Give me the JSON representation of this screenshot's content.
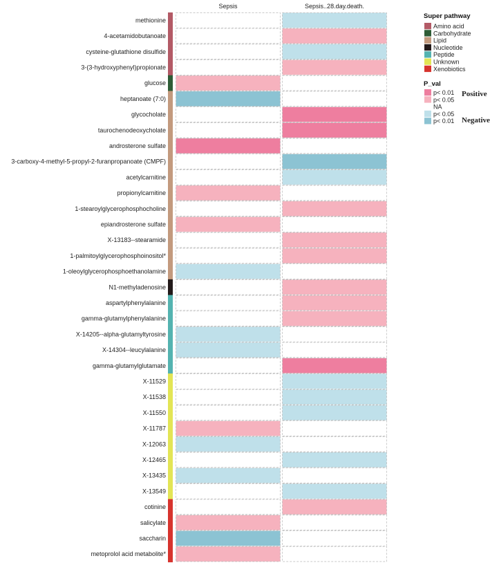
{
  "chart_data": {
    "type": "heatmap",
    "columns": [
      "Sepsis",
      "Sepsis..28.day.death."
    ],
    "rows": [
      {
        "label": "methionine",
        "pathway": "Amino acid",
        "values": [
          "NA",
          "p< 0.05 Negative"
        ]
      },
      {
        "label": "4-acetamidobutanoate",
        "pathway": "Amino acid",
        "values": [
          "NA",
          "p< 0.05 Positive"
        ]
      },
      {
        "label": "cysteine-glutathione disulfide",
        "pathway": "Amino acid",
        "values": [
          "NA",
          "p< 0.05 Negative"
        ]
      },
      {
        "label": "3-(3-hydroxyphenyl)propionate",
        "pathway": "Amino acid",
        "values": [
          "NA",
          "p< 0.05 Positive"
        ]
      },
      {
        "label": "glucose",
        "pathway": "Carbohydrate",
        "values": [
          "p< 0.05 Positive",
          "NA"
        ]
      },
      {
        "label": "heptanoate (7:0)",
        "pathway": "Lipid",
        "values": [
          "p< 0.01 Negative",
          "NA"
        ]
      },
      {
        "label": "glycocholate",
        "pathway": "Lipid",
        "values": [
          "NA",
          "p< 0.01 Positive"
        ]
      },
      {
        "label": "taurochenodeoxycholate",
        "pathway": "Lipid",
        "values": [
          "NA",
          "p< 0.01 Positive"
        ]
      },
      {
        "label": "androsterone sulfate",
        "pathway": "Lipid",
        "values": [
          "p< 0.01 Positive",
          "NA"
        ]
      },
      {
        "label": "3-carboxy-4-methyl-5-propyl-2-furanpropanoate (CMPF)",
        "pathway": "Lipid",
        "values": [
          "NA",
          "p< 0.01 Negative"
        ]
      },
      {
        "label": "acetylcarnitine",
        "pathway": "Lipid",
        "values": [
          "NA",
          "p< 0.05 Negative"
        ]
      },
      {
        "label": "propionylcarnitine",
        "pathway": "Lipid",
        "values": [
          "p< 0.05 Positive",
          "NA"
        ]
      },
      {
        "label": "1-stearoylglycerophosphocholine",
        "pathway": "Lipid",
        "values": [
          "NA",
          "p< 0.05 Positive"
        ]
      },
      {
        "label": "epiandrosterone sulfate",
        "pathway": "Lipid",
        "values": [
          "p< 0.05 Positive",
          "NA"
        ]
      },
      {
        "label": "X-13183--stearamide",
        "pathway": "Lipid",
        "values": [
          "NA",
          "p< 0.05 Positive"
        ]
      },
      {
        "label": "1-palmitoylglycerophosphoinositol*",
        "pathway": "Lipid",
        "values": [
          "NA",
          "p< 0.05 Positive"
        ]
      },
      {
        "label": "1-oleoylglycerophosphoethanolamine",
        "pathway": "Lipid",
        "values": [
          "p< 0.05 Negative",
          "NA"
        ]
      },
      {
        "label": "N1-methyladenosine",
        "pathway": "Nucleotide",
        "values": [
          "NA",
          "p< 0.05 Positive"
        ]
      },
      {
        "label": "aspartylphenylalanine",
        "pathway": "Peptide",
        "values": [
          "NA",
          "p< 0.05 Positive"
        ]
      },
      {
        "label": "gamma-glutamylphenylalanine",
        "pathway": "Peptide",
        "values": [
          "NA",
          "p< 0.05 Positive"
        ]
      },
      {
        "label": "X-14205--alpha-glutamyltyrosine",
        "pathway": "Peptide",
        "values": [
          "p< 0.05 Negative",
          "NA"
        ]
      },
      {
        "label": "X-14304--leucylalanine",
        "pathway": "Peptide",
        "values": [
          "p< 0.05 Negative",
          "NA"
        ]
      },
      {
        "label": "gamma-glutamylglutamate",
        "pathway": "Peptide",
        "values": [
          "NA",
          "p< 0.01 Positive"
        ]
      },
      {
        "label": "X-11529",
        "pathway": "Unknown",
        "values": [
          "NA",
          "p< 0.05 Negative"
        ]
      },
      {
        "label": "X-11538",
        "pathway": "Unknown",
        "values": [
          "NA",
          "p< 0.05 Negative"
        ]
      },
      {
        "label": "X-11550",
        "pathway": "Unknown",
        "values": [
          "NA",
          "p< 0.05 Negative"
        ]
      },
      {
        "label": "X-11787",
        "pathway": "Unknown",
        "values": [
          "p< 0.05 Positive",
          "NA"
        ]
      },
      {
        "label": "X-12063",
        "pathway": "Unknown",
        "values": [
          "p< 0.05 Negative",
          "NA"
        ]
      },
      {
        "label": "X-12465",
        "pathway": "Unknown",
        "values": [
          "NA",
          "p< 0.05 Negative"
        ]
      },
      {
        "label": "X-13435",
        "pathway": "Unknown",
        "values": [
          "p< 0.05 Negative",
          "NA"
        ]
      },
      {
        "label": "X-13549",
        "pathway": "Unknown",
        "values": [
          "NA",
          "p< 0.05 Negative"
        ]
      },
      {
        "label": "cotinine",
        "pathway": "Xenobiotics",
        "values": [
          "NA",
          "p< 0.05 Positive"
        ]
      },
      {
        "label": "salicylate",
        "pathway": "Xenobiotics",
        "values": [
          "p< 0.05 Positive",
          "NA"
        ]
      },
      {
        "label": "saccharin",
        "pathway": "Xenobiotics",
        "values": [
          "p< 0.01 Negative",
          "NA"
        ]
      },
      {
        "label": "metoprolol acid metabolite*",
        "pathway": "Xenobiotics",
        "values": [
          "p< 0.05 Positive",
          "NA"
        ]
      }
    ],
    "legend_pathway": {
      "title": "Super pathway",
      "items": [
        {
          "name": "Amino acid",
          "color": "#B35A66"
        },
        {
          "name": "Carbohydrate",
          "color": "#2E5C36"
        },
        {
          "name": "Lipid",
          "color": "#C39A7E"
        },
        {
          "name": "Nucleotide",
          "color": "#231A1A"
        },
        {
          "name": "Peptide",
          "color": "#54B3B0"
        },
        {
          "name": "Unknown",
          "color": "#E3E555"
        },
        {
          "name": "Xenobiotics",
          "color": "#D7342E"
        }
      ]
    },
    "legend_pval": {
      "title": "P_val",
      "items": [
        {
          "key": "p< 0.01 Positive",
          "text": "p< 0.01",
          "color": "#EE7E9F"
        },
        {
          "key": "p< 0.05 Positive",
          "text": "p< 0.05",
          "color": "#F6B2BE"
        },
        {
          "key": "NA",
          "text": "NA",
          "color": "#FFFFFF"
        },
        {
          "key": "p< 0.05 Negative",
          "text": "p< 0.05",
          "color": "#BFE0EA"
        },
        {
          "key": "p< 0.01 Negative",
          "text": "p< 0.01",
          "color": "#8CC3D3"
        }
      ],
      "positive_label": "Positive",
      "negative_label": "Negative"
    }
  }
}
